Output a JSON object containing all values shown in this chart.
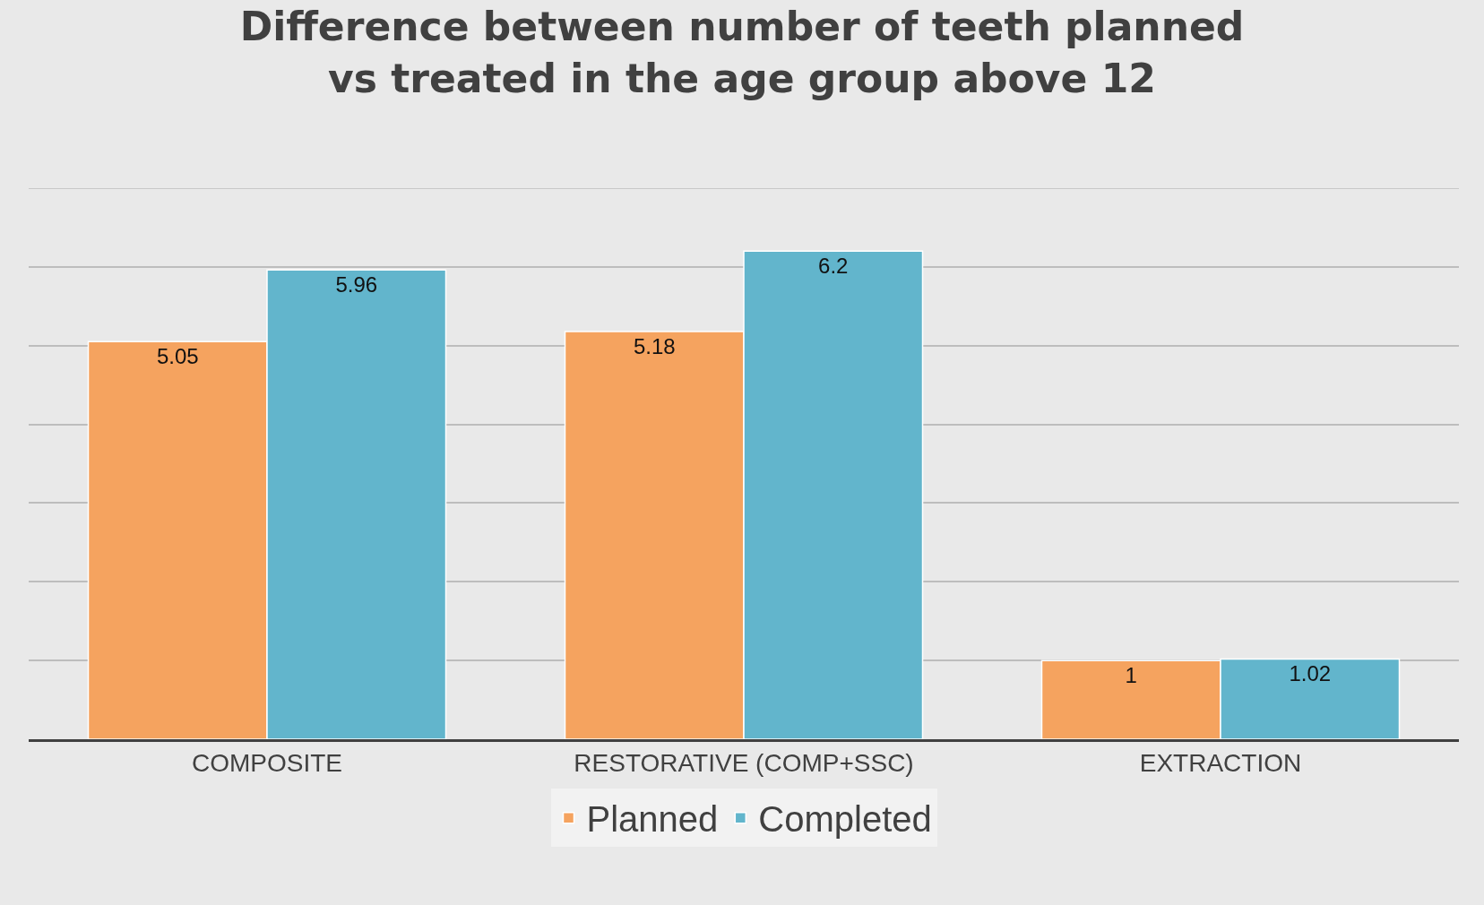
{
  "chart_data": {
    "type": "bar",
    "title": "Difference between number of teeth planned vs treated in the age group above 12",
    "categories": [
      "COMPOSITE",
      "RESTORATIVE (COMP+SSC)",
      "EXTRACTION"
    ],
    "series": [
      {
        "name": "Planned",
        "color": "#f5a35f",
        "values": [
          5.05,
          5.18,
          1
        ]
      },
      {
        "name": "Completed",
        "color": "#62b5cc",
        "values": [
          5.96,
          6.2,
          1.02
        ]
      }
    ],
    "ylim": [
      0,
      7
    ],
    "yticks": [
      {
        "value": 0,
        "label": null
      },
      {
        "value": 1,
        "label": null
      },
      {
        "value": 2,
        "label": null
      },
      {
        "value": 3,
        "label": null
      },
      {
        "value": 4,
        "label": null
      },
      {
        "value": 5,
        "label": null
      },
      {
        "value": 6,
        "label": null
      }
    ],
    "tick_labels": "x",
    "grid": "y",
    "legend": "bottom",
    "data_labels": true
  }
}
